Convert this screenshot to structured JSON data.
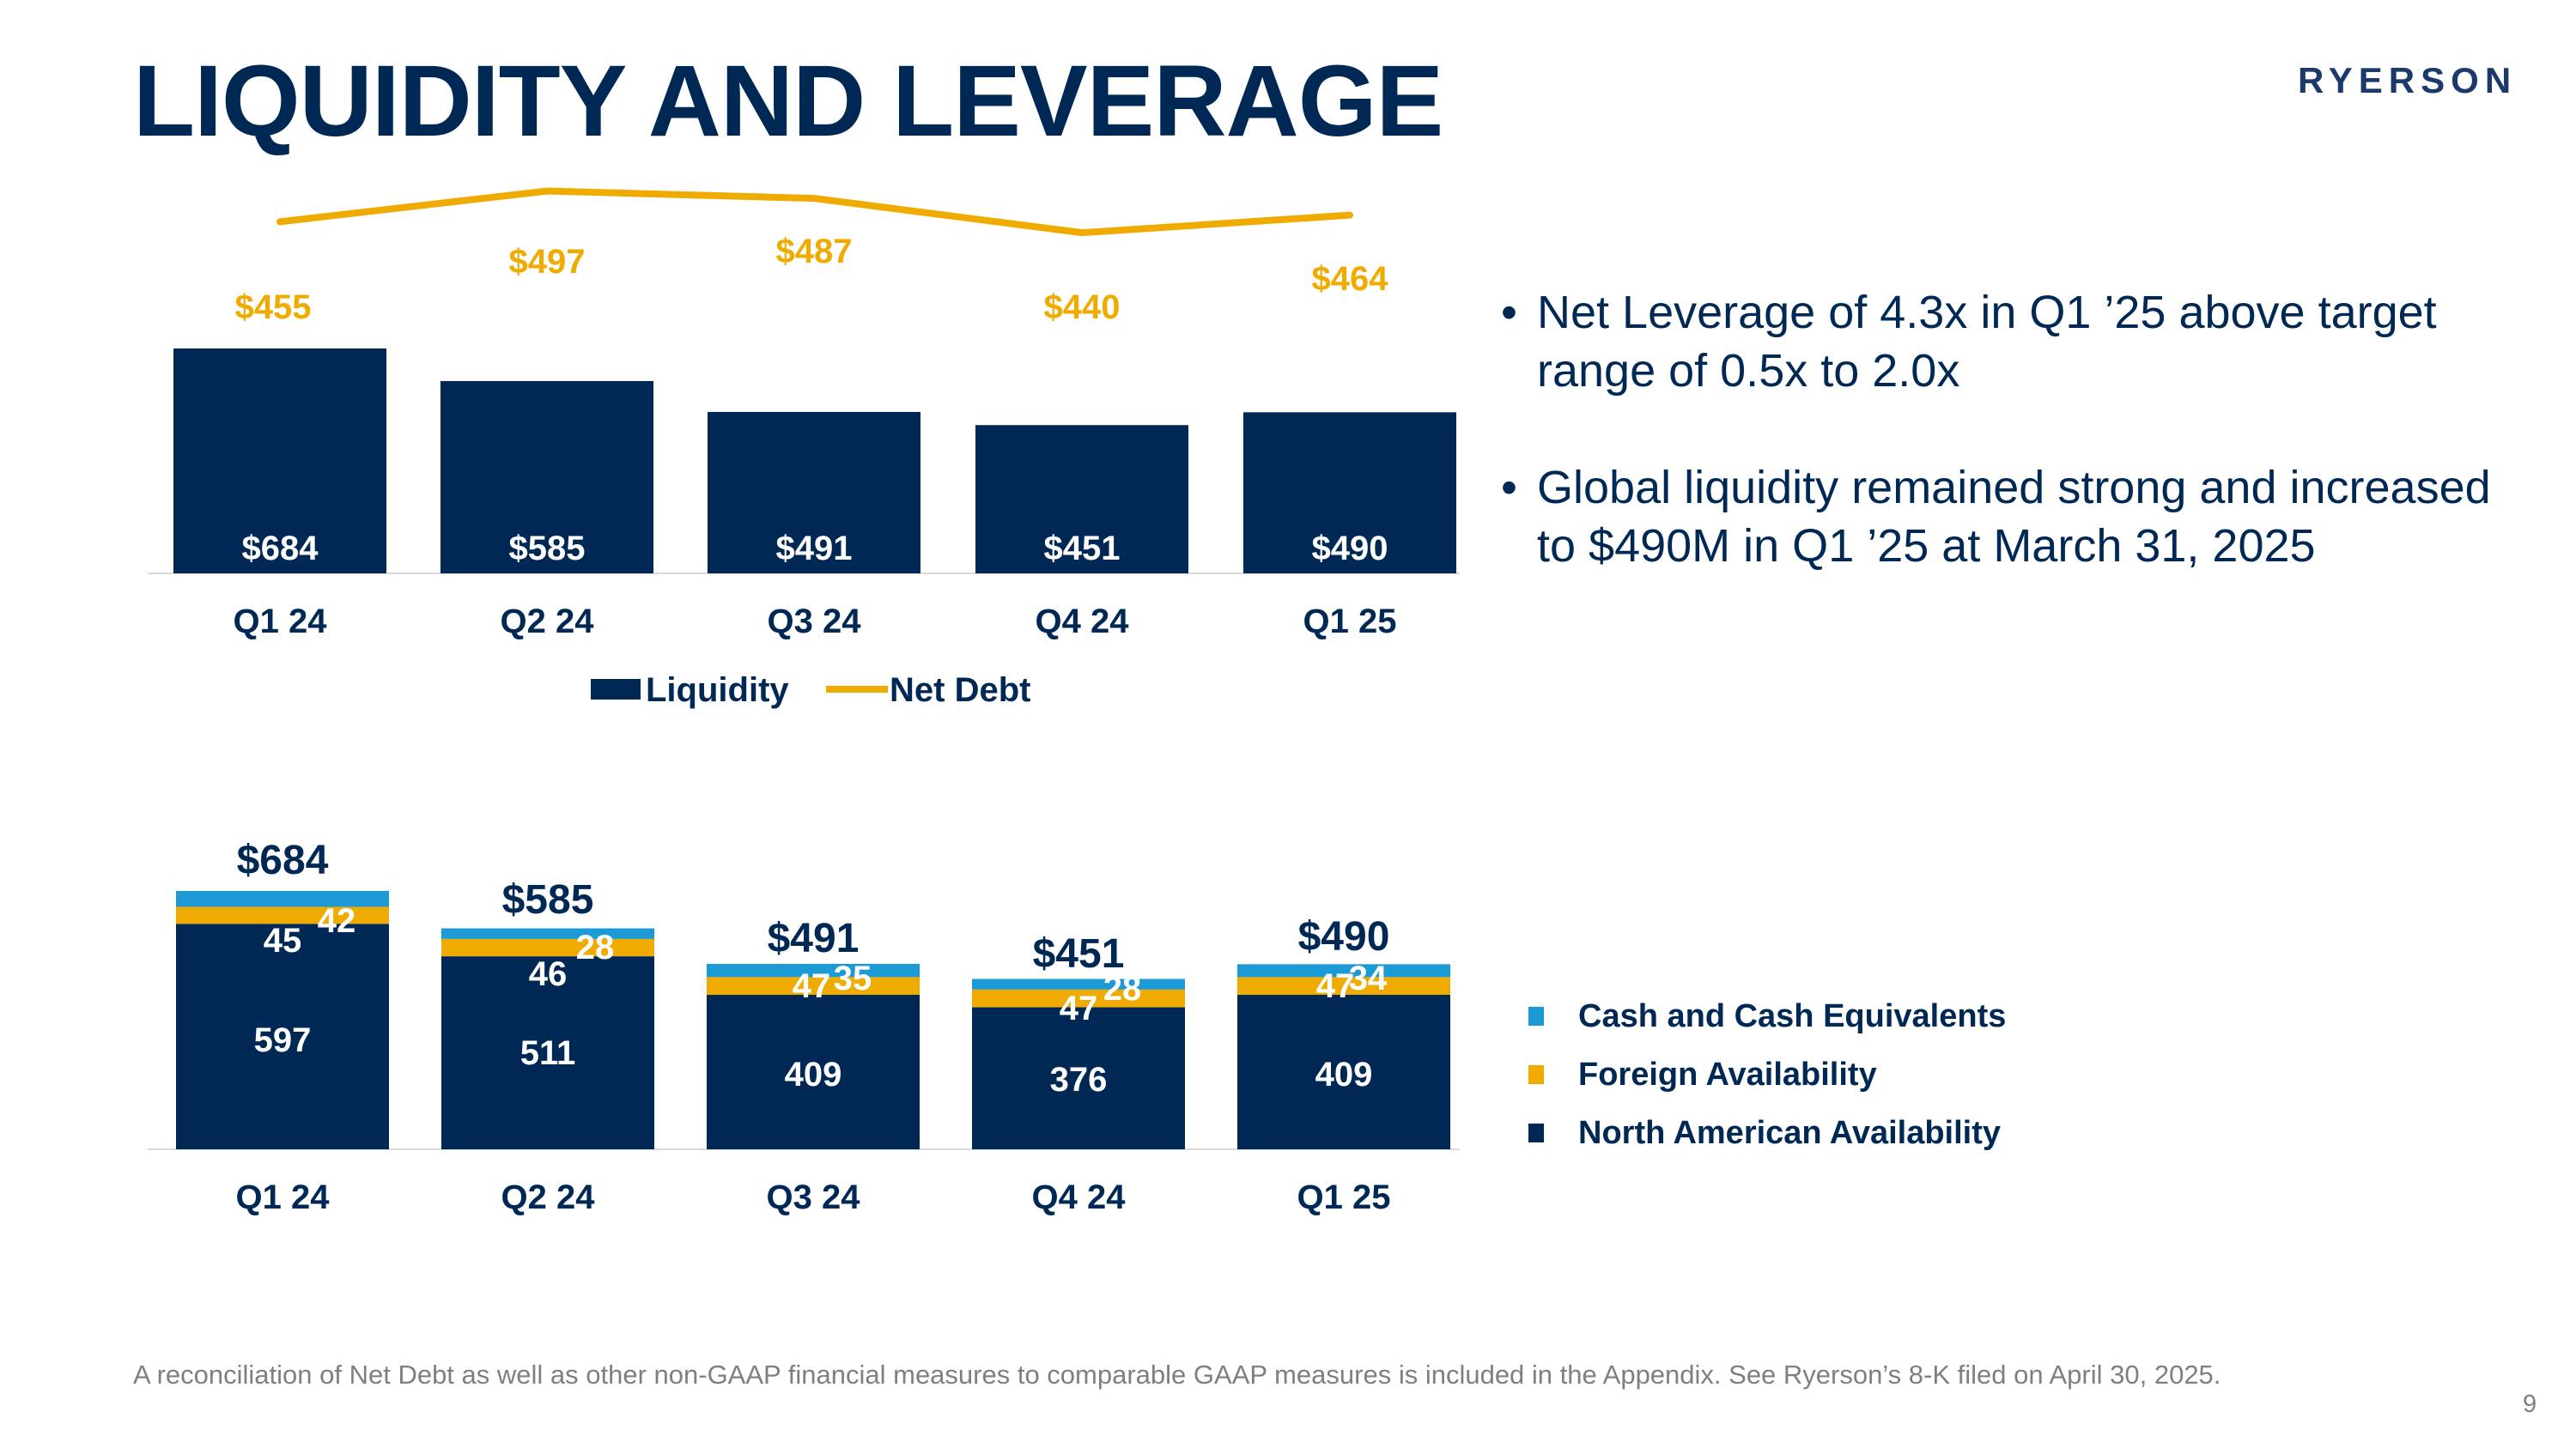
{
  "title": "LIQUIDITY AND LEVERAGE",
  "logo": "RYERSON",
  "colors": {
    "navy": "#002855",
    "gold": "#F0AB00",
    "blue": "#1B9AD6"
  },
  "bullets": [
    "Net Leverage of 4.3x in Q1 ’25 above target range of 0.5x to 2.0x",
    "Global liquidity remained strong and increased to $490M in Q1 ’25 at March 31, 2025"
  ],
  "chart_data": [
    {
      "type": "bar",
      "categories": [
        "Q1 24",
        "Q2 24",
        "Q3 24",
        "Q4 24",
        "Q1 25"
      ],
      "series": [
        {
          "name": "Liquidity",
          "kind": "bar",
          "values": [
            684,
            585,
            491,
            451,
            490
          ],
          "labels": [
            "$684",
            "$585",
            "$491",
            "$451",
            "$490"
          ]
        },
        {
          "name": "Net Debt",
          "kind": "line",
          "values": [
            455,
            497,
            487,
            440,
            464
          ],
          "labels": [
            "$455",
            "$497",
            "$487",
            "$440",
            "$464"
          ]
        }
      ],
      "legend": {
        "position": "bottom",
        "entries": [
          "Liquidity",
          "Net Debt"
        ]
      },
      "grid": false
    },
    {
      "type": "bar",
      "stacked": true,
      "categories": [
        "Q1 24",
        "Q2 24",
        "Q3 24",
        "Q4 24",
        "Q1 25"
      ],
      "series": [
        {
          "name": "North American Availability",
          "values": [
            597,
            511,
            409,
            376,
            409
          ]
        },
        {
          "name": "Foreign Availability",
          "values": [
            45,
            46,
            47,
            47,
            47
          ]
        },
        {
          "name": "Cash and Cash Equivalents",
          "values": [
            42,
            28,
            35,
            28,
            34
          ]
        }
      ],
      "totals": [
        "$684",
        "$585",
        "$491",
        "$451",
        "$490"
      ],
      "legend": {
        "position": "right",
        "entries": [
          "Cash and Cash Equivalents",
          "Foreign Availability",
          "North American Availability"
        ]
      },
      "grid": false
    }
  ],
  "footnote": "A reconciliation of Net Debt as well as other non-GAAP financial measures to comparable GAAP measures is included in the Appendix. See Ryerson’s 8-K filed on April 30, 2025.",
  "page_number": "9"
}
